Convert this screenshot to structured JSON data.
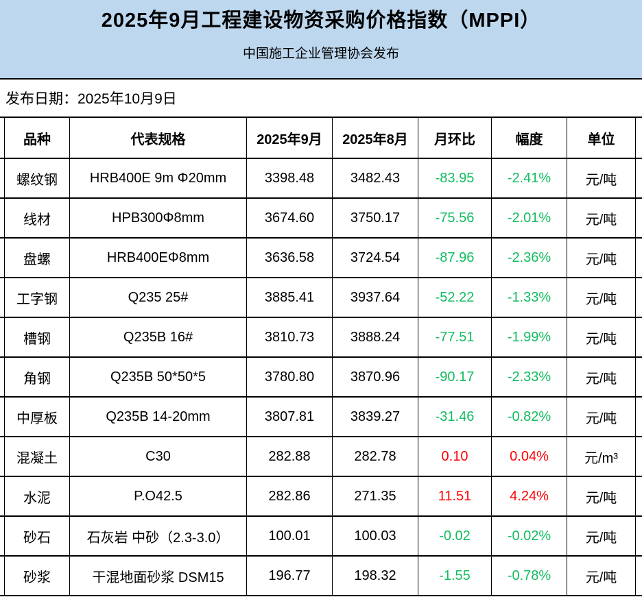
{
  "banner": {
    "title": "2025年9月工程建设物资采购价格指数（MPPI）",
    "subtitle": "中国施工企业管理协会发布"
  },
  "publish_date": {
    "label": "发布日期：2025年10月9日"
  },
  "colors": {
    "banner_bg": "#BDD7EE",
    "increase_red": "#FF0000",
    "decrease_green": "#12BC5F",
    "border": "#000000"
  },
  "table": {
    "columns": [
      "品种",
      "代表规格",
      "2025年9月",
      "2025年8月",
      "月环比",
      "幅度",
      "单位"
    ],
    "rows": [
      {
        "name": "螺纹钢",
        "spec": "HRB400E 9m Φ20mm",
        "sep": "3398.48",
        "aug": "3482.43",
        "mom": "-83.95",
        "pct": "-2.41%",
        "unit": "元/吨"
      },
      {
        "name": "线材",
        "spec": "HPB300Φ8mm",
        "sep": "3674.60",
        "aug": "3750.17",
        "mom": "-75.56",
        "pct": "-2.01%",
        "unit": "元/吨"
      },
      {
        "name": "盘螺",
        "spec": "HRB400EΦ8mm",
        "sep": "3636.58",
        "aug": "3724.54",
        "mom": "-87.96",
        "pct": "-2.36%",
        "unit": "元/吨"
      },
      {
        "name": "工字钢",
        "spec": "Q235 25#",
        "sep": "3885.41",
        "aug": "3937.64",
        "mom": "-52.22",
        "pct": "-1.33%",
        "unit": "元/吨"
      },
      {
        "name": "槽钢",
        "spec": "Q235B 16#",
        "sep": "3810.73",
        "aug": "3888.24",
        "mom": "-77.51",
        "pct": "-1.99%",
        "unit": "元/吨"
      },
      {
        "name": "角钢",
        "spec": "Q235B 50*50*5",
        "sep": "3780.80",
        "aug": "3870.96",
        "mom": "-90.17",
        "pct": "-2.33%",
        "unit": "元/吨"
      },
      {
        "name": "中厚板",
        "spec": "Q235B 14-20mm",
        "sep": "3807.81",
        "aug": "3839.27",
        "mom": "-31.46",
        "pct": "-0.82%",
        "unit": "元/吨"
      },
      {
        "name": "混凝土",
        "spec": "C30",
        "sep": "282.88",
        "aug": "282.78",
        "mom": "0.10",
        "pct": "0.04%",
        "unit": "元/m³"
      },
      {
        "name": "水泥",
        "spec": "P.O42.5",
        "sep": "282.86",
        "aug": "271.35",
        "mom": "11.51",
        "pct": "4.24%",
        "unit": "元/吨"
      },
      {
        "name": "砂石",
        "spec": "石灰岩 中砂（2.3-3.0）",
        "sep": "100.01",
        "aug": "100.03",
        "mom": "-0.02",
        "pct": "-0.02%",
        "unit": "元/吨"
      },
      {
        "name": "砂浆",
        "spec": "干混地面砂浆 DSM15",
        "sep": "196.77",
        "aug": "198.32",
        "mom": "-1.55",
        "pct": "-0.78%",
        "unit": "元/吨"
      }
    ]
  }
}
